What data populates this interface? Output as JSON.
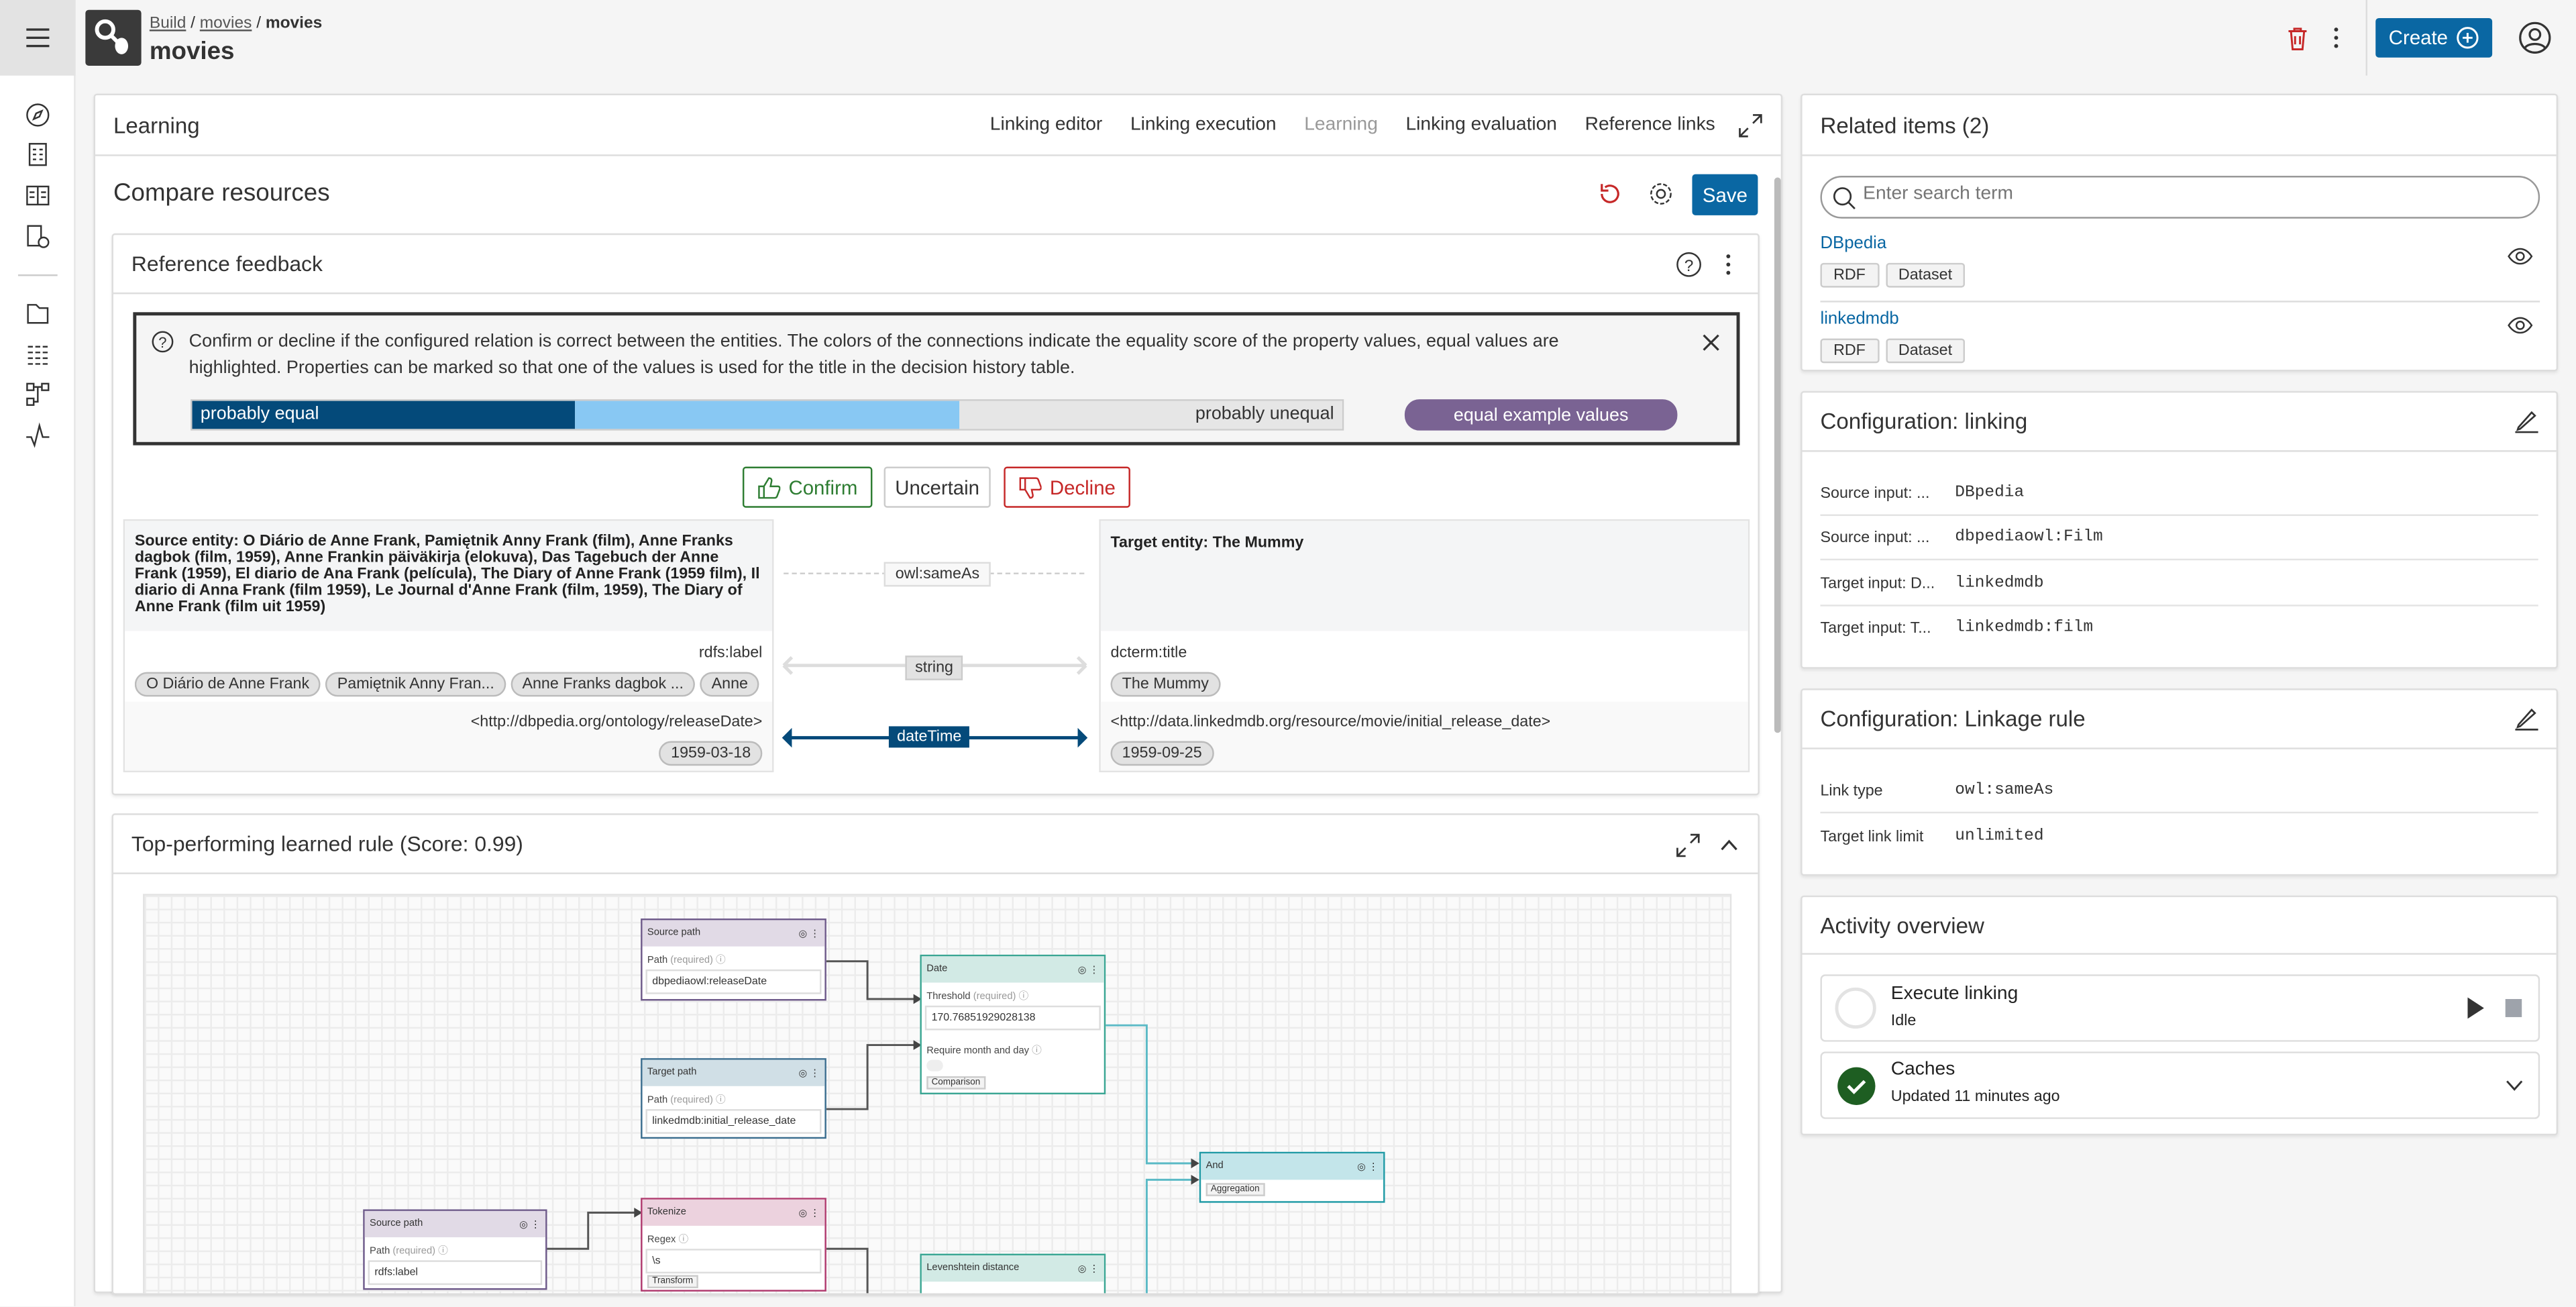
{
  "header": {
    "breadcrumb": [
      "Build",
      "movies",
      "movies"
    ],
    "title": "movies",
    "create_label": "Create"
  },
  "learning": {
    "title": "Learning",
    "tabs": [
      "Linking editor",
      "Linking execution",
      "Learning",
      "Linking evaluation",
      "Reference links"
    ],
    "active_tab": "Learning"
  },
  "compare": {
    "title": "Compare resources",
    "save_label": "Save"
  },
  "feedback": {
    "title": "Reference feedback",
    "info": "Confirm or decline if the configured relation is correct between the entities. The colors of the connections indicate the equality score of the property values, equal values are highlighted. Properties can be marked so that one of the values is used for the title in the decision history table.",
    "legend": {
      "equal": "probably equal",
      "unequal": "probably unequal",
      "example": "equal example values"
    },
    "buttons": {
      "confirm": "Confirm",
      "uncertain": "Uncertain",
      "decline": "Decline"
    },
    "source_entity": "Source entity: O Diário de Anne Frank, Pamiętnik Anny Frank (film), Anne Franks dagbok (film, 1959), Anne Frankin päiväkirja (elokuva), Das Tagebuch der Anne Frank (1959), El diario de Ana Frank (película), The Diary of Anne Frank (1959 film), Il diario di Anna Frank (film 1959), Le Journal d'Anne Frank (film, 1959), The Diary of Anne Frank (film uit 1959)",
    "target_entity": "Target entity: The Mummy",
    "relation": "owl:sameAs",
    "rows": [
      {
        "source_prop": "rdfs:label",
        "source_values": [
          "O Diário de Anne Frank",
          "Pamiętnik Anny Fran...",
          "Anne Franks dagbok ...",
          "Anne"
        ],
        "type": "string",
        "target_prop": "dcterm:title",
        "target_values": [
          "The Mummy"
        ]
      },
      {
        "source_prop": "<http://dbpedia.org/ontology/releaseDate>",
        "source_values": [
          "1959-03-18"
        ],
        "type": "dateTime",
        "target_prop": "<http://data.linkedmdb.org/resource/movie/initial_release_date>",
        "target_values": [
          "1959-09-25"
        ]
      }
    ]
  },
  "rule": {
    "title": "Top-performing learned rule (Score: 0.99)",
    "nodes": {
      "src1": {
        "title": "Source path",
        "label": "Path",
        "req": "(required)",
        "value": "dbpediaowl:releaseDate"
      },
      "tgt1": {
        "title": "Target path",
        "label": "Path",
        "req": "(required)",
        "value": "linkedmdb:initial_release_date"
      },
      "date": {
        "title": "Date",
        "label": "Threshold",
        "req": "(required)",
        "value": "170.76851929028138",
        "label2": "Require month and day",
        "tag": "Comparison"
      },
      "and": {
        "title": "And",
        "tag": "Aggregation"
      },
      "src2": {
        "title": "Source path",
        "label": "Path",
        "req": "(required)",
        "value": "rdfs:label"
      },
      "tok": {
        "title": "Tokenize",
        "label": "Regex",
        "value": "\\s",
        "tag": "Transform"
      },
      "lev": {
        "title": "Levenshtein distance"
      }
    }
  },
  "related": {
    "title": "Related items (2)",
    "search_placeholder": "Enter search term",
    "items": [
      {
        "name": "DBpedia",
        "tags": [
          "RDF",
          "Dataset"
        ]
      },
      {
        "name": "linkedmdb",
        "tags": [
          "RDF",
          "Dataset"
        ]
      }
    ]
  },
  "config_linking": {
    "title": "Configuration: linking",
    "rows": [
      {
        "k": "Source input: ...",
        "v": "DBpedia"
      },
      {
        "k": "Source input: ...",
        "v": "dbpediaowl:Film"
      },
      {
        "k": "Target input: D...",
        "v": "linkedmdb"
      },
      {
        "k": "Target input: T...",
        "v": "linkedmdb:film"
      }
    ]
  },
  "config_rule": {
    "title": "Configuration: Linkage rule",
    "rows": [
      {
        "k": "Link type",
        "v": "owl:sameAs"
      },
      {
        "k": "Target link limit",
        "v": "unlimited"
      }
    ]
  },
  "activity": {
    "title": "Activity overview",
    "items": [
      {
        "name": "Execute linking",
        "status": "Idle"
      },
      {
        "name": "Caches",
        "status": "Updated 11 minutes ago"
      }
    ]
  },
  "colors": {
    "primary": "#0a67a3",
    "equal": "#044a7a",
    "partial": "#88c8f3",
    "example": "#7a6393",
    "confirm": "#2e7d32",
    "decline": "#c62828"
  }
}
